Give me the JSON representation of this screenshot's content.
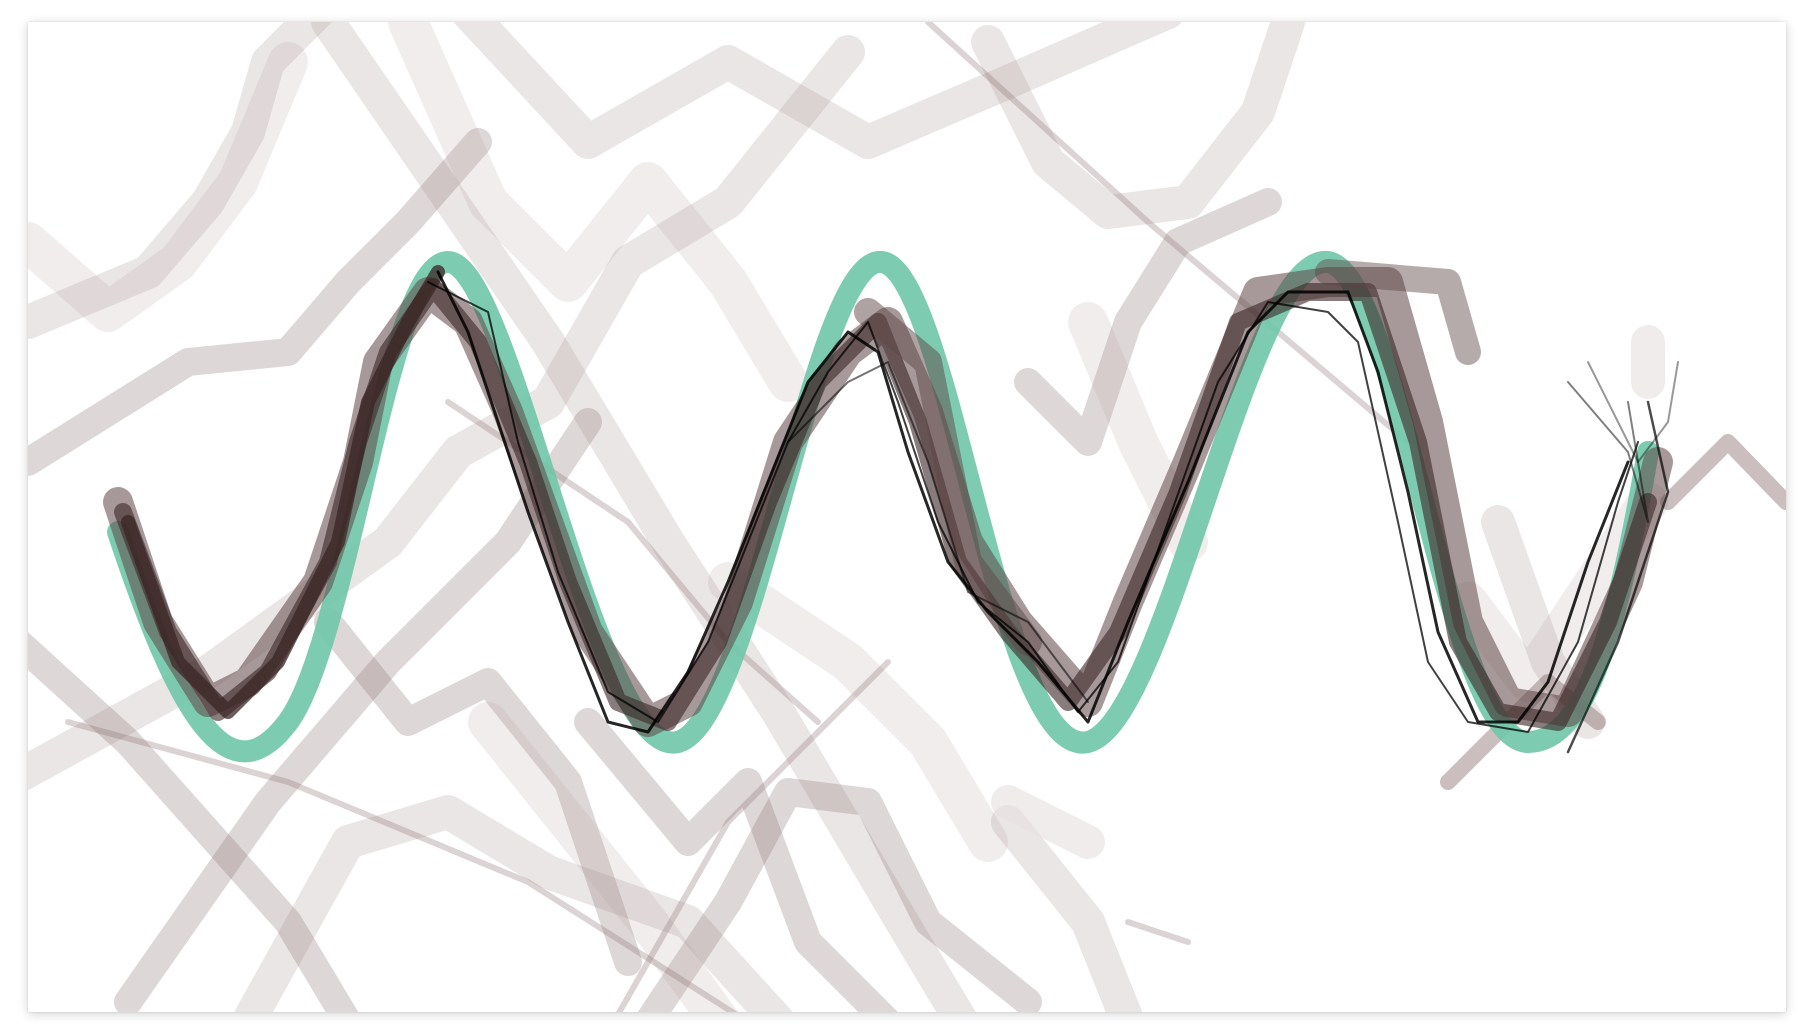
{
  "canvas": {
    "background_color": "#ffffff",
    "target_wave_color": "#6fc7aa",
    "stroke_colors": [
      "#a58e8e",
      "#b19d9d",
      "#8a6f6f",
      "#5e4545",
      "#3b2424",
      "#000000"
    ],
    "target_wave_cycles": 3.5,
    "stroke_count_background": "many",
    "stroke_count_fitted": "many"
  }
}
